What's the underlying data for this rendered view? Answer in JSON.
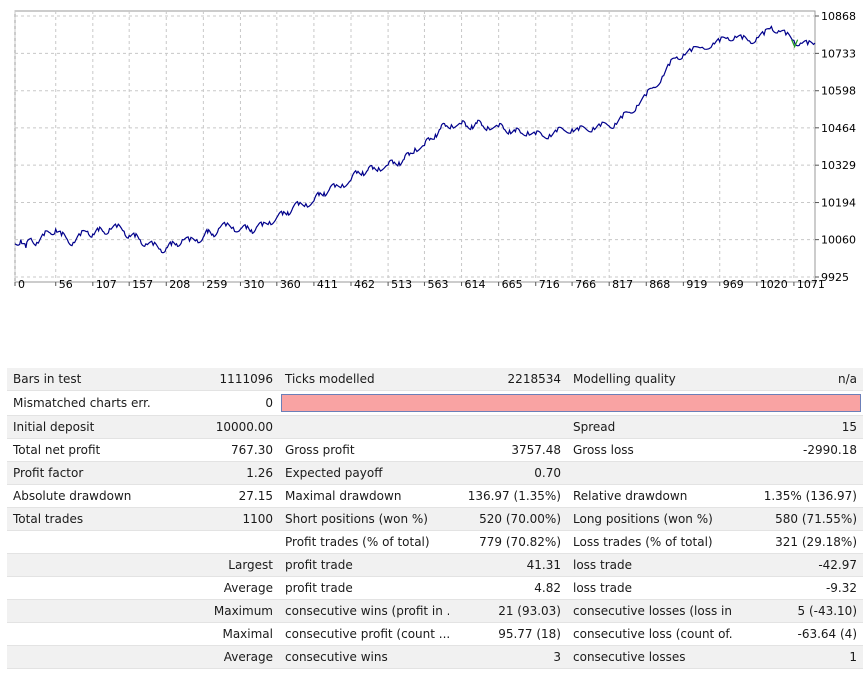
{
  "chart_data": {
    "type": "line",
    "yticks": [
      10868,
      10733,
      10598,
      10464,
      10329,
      10194,
      10060,
      9925
    ],
    "ylim": [
      9925,
      10868
    ],
    "xticks": [
      0,
      56,
      107,
      157,
      208,
      259,
      310,
      360,
      411,
      462,
      513,
      563,
      614,
      665,
      716,
      766,
      817,
      868,
      919,
      969,
      1020,
      1071
    ],
    "xlim": [
      0,
      1100
    ],
    "grid": true,
    "series": [
      {
        "color": "#00008b",
        "x": [
          0,
          8,
          15,
          22,
          30,
          40,
          48,
          56,
          64,
          72,
          80,
          90,
          100,
          107,
          115,
          122,
          130,
          140,
          150,
          157,
          165,
          172,
          180,
          190,
          200,
          208,
          215,
          222,
          230,
          240,
          250,
          259,
          265,
          272,
          280,
          290,
          300,
          310,
          318,
          325,
          332,
          340,
          350,
          360,
          368,
          375,
          382,
          390,
          400,
          411,
          418,
          425,
          432,
          440,
          450,
          462,
          470,
          478,
          485,
          492,
          500,
          513,
          520,
          528,
          535,
          542,
          550,
          563,
          570,
          578,
          585,
          592,
          600,
          614,
          620,
          628,
          635,
          642,
          650,
          665,
          672,
          680,
          688,
          695,
          705,
          716,
          725,
          735,
          745,
          755,
          766,
          775,
          785,
          795,
          805,
          817,
          825,
          835,
          845,
          855,
          868,
          878,
          890,
          900,
          910,
          919,
          930,
          945,
          960,
          969,
          980,
          990,
          1000,
          1010,
          1020,
          1030,
          1040,
          1050,
          1060,
          1071,
          1080,
          1090,
          1100
        ],
        "y": [
          10045,
          10060,
          10030,
          10065,
          10050,
          10075,
          10085,
          10098,
          10075,
          10060,
          10050,
          10075,
          10090,
          10080,
          10092,
          10088,
          10100,
          10105,
          10090,
          10075,
          10070,
          10060,
          10045,
          10040,
          10025,
          10030,
          10040,
          10045,
          10060,
          10055,
          10060,
          10070,
          10085,
          10080,
          10100,
          10110,
          10105,
          10098,
          10100,
          10095,
          10105,
          10110,
          10125,
          10140,
          10150,
          10160,
          10175,
          10185,
          10190,
          10200,
          10220,
          10230,
          10240,
          10250,
          10260,
          10275,
          10300,
          10305,
          10310,
          10315,
          10320,
          10330,
          10335,
          10340,
          10350,
          10365,
          10390,
          10400,
          10420,
          10440,
          10460,
          10470,
          10475,
          10478,
          10470,
          10472,
          10480,
          10472,
          10468,
          10468,
          10460,
          10455,
          10450,
          10446,
          10450,
          10440,
          10435,
          10440,
          10450,
          10455,
          10460,
          10455,
          10460,
          10465,
          10470,
          10470,
          10480,
          10500,
          10520,
          10545,
          10580,
          10610,
          10650,
          10690,
          10720,
          10730,
          10740,
          10755,
          10770,
          10775,
          10790,
          10795,
          10785,
          10778,
          10790,
          10800,
          10830,
          10815,
          10800,
          10780,
          10770,
          10765,
          10770
        ]
      }
    ]
  },
  "report": {
    "rows": [
      [
        "Bars in test",
        "1111096",
        "Ticks modelled",
        "2218534",
        "Modelling quality",
        "n/a"
      ],
      [
        "Mismatched charts err...",
        "0",
        "",
        "",
        "",
        ""
      ],
      [
        "Initial deposit",
        "10000.00",
        "",
        "",
        "Spread",
        "15"
      ],
      [
        "Total net profit",
        "767.30",
        "Gross profit",
        "3757.48",
        "Gross loss",
        "-2990.18"
      ],
      [
        "Profit factor",
        "1.26",
        "Expected payoff",
        "0.70",
        "",
        ""
      ],
      [
        "Absolute drawdown",
        "27.15",
        "Maximal drawdown",
        "136.97 (1.35%)",
        "Relative drawdown",
        "1.35% (136.97)"
      ],
      [
        "Total trades",
        "1100",
        "Short positions (won %)",
        "520 (70.00%)",
        "Long positions (won %)",
        "580 (71.55%)"
      ],
      [
        "",
        "",
        "Profit trades (% of total)",
        "779 (70.82%)",
        "Loss trades (% of total)",
        "321 (29.18%)"
      ],
      [
        "",
        "Largest",
        "profit trade",
        "41.31",
        "loss trade",
        "-42.97"
      ],
      [
        "",
        "Average",
        "profit trade",
        "4.82",
        "loss trade",
        "-9.32"
      ],
      [
        "",
        "Maximum",
        "consecutive wins (profit in ...",
        "21 (93.03)",
        "consecutive losses (loss in ...",
        "5 (-43.10)"
      ],
      [
        "",
        "Maximal",
        "consecutive profit (count ...",
        "95.77 (18)",
        "consecutive loss (count of...",
        "-63.64 (4)"
      ],
      [
        "",
        "Average",
        "consecutive wins",
        "3",
        "consecutive losses",
        "1"
      ]
    ]
  }
}
